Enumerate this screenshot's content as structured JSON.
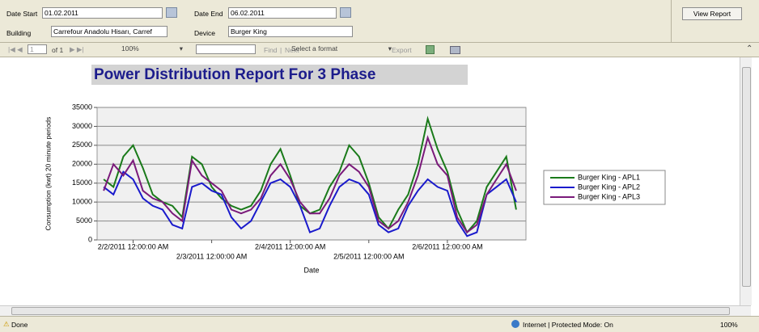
{
  "params": {
    "date_start_label": "Date Start",
    "date_start": "01.02.2011",
    "date_end_label": "Date End",
    "date_end": "06.02.2011",
    "building_label": "Building",
    "building": "Carrefour Anadolu Hisarı, Carref",
    "device_label": "Device",
    "device": "Burger King",
    "view_report": "View Report"
  },
  "toolbar": {
    "page": "1",
    "of_pages": "of 1",
    "zoom": "100%",
    "find": "Find",
    "separator": "|",
    "next": "Next",
    "format": "Select a format",
    "export": "Export"
  },
  "status": {
    "done": "Done",
    "zone": "Internet | Protected Mode: On",
    "zoom": "100%"
  },
  "chart_data": {
    "type": "line",
    "title": "Power Distribution Report For 3 Phase",
    "x_label": "Date",
    "y_label": "Consumption (kwt) 20 minute periods",
    "x": [
      "2/1/2011 3:00:00 PM",
      "2/1/2011 6:00:00 PM",
      "2/1/2011 9:00:00 PM",
      "2/2/2011 12:00:00 AM",
      "2/2/2011 3:00:00 AM",
      "2/2/2011 6:00:00 AM",
      "2/2/2011 9:00:00 AM",
      "2/2/2011 12:00:00 PM",
      "2/2/2011 3:00:00 PM",
      "2/2/2011 6:00:00 PM",
      "2/2/2011 9:00:00 PM",
      "2/3/2011 12:00:00 AM",
      "2/3/2011 3:00:00 AM",
      "2/3/2011 6:00:00 AM",
      "2/3/2011 9:00:00 AM",
      "2/3/2011 12:00:00 PM",
      "2/3/2011 3:00:00 PM",
      "2/3/2011 6:00:00 PM",
      "2/3/2011 9:00:00 PM",
      "2/4/2011 12:00:00 AM",
      "2/4/2011 3:00:00 AM",
      "2/4/2011 6:00:00 AM",
      "2/4/2011 9:00:00 AM",
      "2/4/2011 12:00:00 PM",
      "2/4/2011 3:00:00 PM",
      "2/4/2011 6:00:00 PM",
      "2/4/2011 9:00:00 PM",
      "2/5/2011 12:00:00 AM",
      "2/5/2011 3:00:00 AM",
      "2/5/2011 6:00:00 AM",
      "2/5/2011 9:00:00 AM",
      "2/5/2011 12:00:00 PM",
      "2/5/2011 3:00:00 PM",
      "2/5/2011 6:00:00 PM",
      "2/5/2011 9:00:00 PM",
      "2/6/2011 12:00:00 AM",
      "2/6/2011 3:00:00 AM",
      "2/6/2011 6:00:00 AM",
      "2/6/2011 9:00:00 AM",
      "2/6/2011 12:00:00 PM",
      "2/6/2011 3:00:00 PM",
      "2/6/2011 6:00:00 PM",
      "2/6/2011 9:00:00 PM"
    ],
    "series": [
      {
        "name": "Burger King - APL1",
        "color": "#1a7a1a",
        "values": [
          16000,
          14000,
          22000,
          25000,
          19000,
          12000,
          10000,
          9000,
          6000,
          22000,
          20000,
          14000,
          11000,
          9000,
          8000,
          9000,
          13000,
          20000,
          24000,
          17000,
          9000,
          7000,
          8000,
          14000,
          18000,
          25000,
          22000,
          15000,
          6000,
          3000,
          8000,
          12000,
          20000,
          32000,
          24000,
          18000,
          8000,
          2000,
          5000,
          14000,
          18000,
          22000,
          8000
        ]
      },
      {
        "name": "Burger King - APL2",
        "color": "#1a1acc",
        "values": [
          14000,
          12000,
          18000,
          16000,
          11000,
          9000,
          8000,
          4000,
          3000,
          14000,
          15000,
          13000,
          12000,
          6000,
          3000,
          5000,
          10000,
          15000,
          16000,
          14000,
          9000,
          2000,
          3000,
          9000,
          14000,
          16000,
          15000,
          12000,
          4000,
          2000,
          3000,
          9000,
          13000,
          16000,
          14000,
          13000,
          5000,
          1000,
          2000,
          12000,
          14000,
          16000,
          10000
        ]
      },
      {
        "name": "Burger King - APL3",
        "color": "#7a1a7a",
        "values": [
          13000,
          20000,
          17000,
          21000,
          13000,
          11000,
          10000,
          7000,
          5000,
          21000,
          17000,
          15000,
          13000,
          8000,
          7000,
          8000,
          11000,
          17000,
          20000,
          16000,
          10000,
          7000,
          7000,
          11000,
          17000,
          20000,
          18000,
          14000,
          5000,
          3000,
          5000,
          10000,
          17000,
          27000,
          20000,
          17000,
          6000,
          2000,
          4000,
          12000,
          16000,
          20000,
          13000
        ]
      }
    ],
    "xlim": [
      "2/1/2011 1:00:00 PM",
      "2/7/2011 12:00:00 AM"
    ],
    "xticks": [
      "2/2/2011 12:00:00 AM",
      "2/3/2011 12:00:00 AM",
      "2/4/2011 12:00:00 AM",
      "2/5/2011 12:00:00 AM",
      "2/6/2011 12:00:00 AM"
    ],
    "ylim": [
      0,
      35000
    ],
    "yticks": [
      0,
      5000,
      10000,
      15000,
      20000,
      25000,
      30000,
      35000
    ],
    "grid": true,
    "legend": "right"
  }
}
